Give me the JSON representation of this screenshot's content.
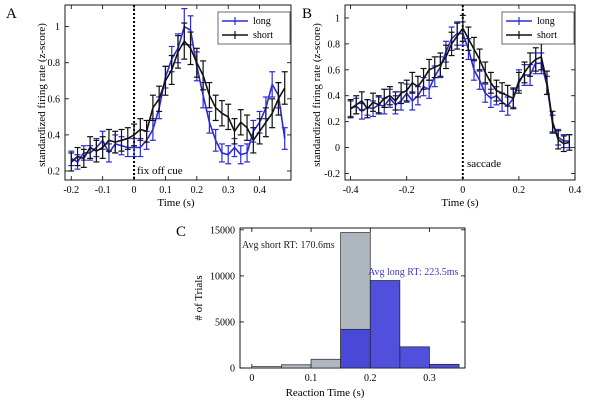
{
  "chart_data": [
    {
      "panel": "A",
      "type": "line",
      "xlabel": "Time (s)",
      "ylabel": "standardized firing rate (z-score)",
      "xlim": [
        -0.22,
        0.5
      ],
      "ylim": [
        0.15,
        1.12
      ],
      "x_ticks": [
        -0.2,
        -0.1,
        0,
        0.1,
        0.2,
        0.3,
        0.4
      ],
      "x_tick_labels": [
        "-0.2",
        "-0.1",
        "0",
        "0.1",
        "0.2",
        "0.3",
        "0.4"
      ],
      "y_ticks": [
        0.2,
        0.4,
        0.6,
        0.8,
        1.0
      ],
      "y_tick_labels": [
        "0.2",
        "0.4",
        "0.6",
        "0.8",
        "1"
      ],
      "vline": {
        "x": 0,
        "label": "fix off cue"
      },
      "legend": [
        "long",
        "short"
      ],
      "series": [
        {
          "name": "long",
          "color": "#2c2cd6",
          "x": [
            -0.2,
            -0.18,
            -0.16,
            -0.14,
            -0.12,
            -0.1,
            -0.08,
            -0.06,
            -0.04,
            -0.02,
            0,
            0.02,
            0.04,
            0.06,
            0.08,
            0.1,
            0.12,
            0.14,
            0.16,
            0.18,
            0.2,
            0.22,
            0.24,
            0.26,
            0.28,
            0.3,
            0.32,
            0.34,
            0.36,
            0.38,
            0.4,
            0.42,
            0.44,
            0.46,
            0.48
          ],
          "y": [
            0.27,
            0.25,
            0.3,
            0.3,
            0.33,
            0.37,
            0.3,
            0.35,
            0.34,
            0.33,
            0.33,
            0.33,
            0.37,
            0.43,
            0.55,
            0.72,
            0.82,
            0.88,
            1.0,
            0.98,
            0.78,
            0.62,
            0.47,
            0.37,
            0.3,
            0.29,
            0.33,
            0.29,
            0.3,
            0.42,
            0.47,
            0.55,
            0.68,
            0.62,
            0.38
          ],
          "err": [
            0.04,
            0.04,
            0.04,
            0.04,
            0.05,
            0.05,
            0.05,
            0.05,
            0.05,
            0.05,
            0.05,
            0.05,
            0.05,
            0.06,
            0.06,
            0.06,
            0.07,
            0.08,
            0.1,
            0.08,
            0.08,
            0.07,
            0.06,
            0.06,
            0.05,
            0.05,
            0.05,
            0.05,
            0.05,
            0.06,
            0.06,
            0.06,
            0.07,
            0.07,
            0.06
          ]
        },
        {
          "name": "short",
          "color": "#111111",
          "x": [
            -0.2,
            -0.18,
            -0.16,
            -0.14,
            -0.12,
            -0.1,
            -0.08,
            -0.06,
            -0.04,
            -0.02,
            0,
            0.02,
            0.04,
            0.06,
            0.08,
            0.1,
            0.12,
            0.14,
            0.16,
            0.18,
            0.2,
            0.22,
            0.24,
            0.26,
            0.28,
            0.3,
            0.32,
            0.34,
            0.36,
            0.38,
            0.4,
            0.42,
            0.44,
            0.46,
            0.48
          ],
          "y": [
            0.25,
            0.28,
            0.27,
            0.33,
            0.31,
            0.33,
            0.37,
            0.36,
            0.37,
            0.38,
            0.4,
            0.43,
            0.42,
            0.55,
            0.6,
            0.7,
            0.76,
            0.86,
            0.92,
            0.88,
            0.8,
            0.73,
            0.62,
            0.55,
            0.52,
            0.5,
            0.42,
            0.47,
            0.44,
            0.37,
            0.42,
            0.47,
            0.52,
            0.6,
            0.66
          ],
          "err": [
            0.05,
            0.05,
            0.05,
            0.06,
            0.06,
            0.06,
            0.06,
            0.06,
            0.06,
            0.06,
            0.06,
            0.06,
            0.06,
            0.07,
            0.07,
            0.08,
            0.08,
            0.09,
            0.1,
            0.09,
            0.08,
            0.08,
            0.07,
            0.07,
            0.07,
            0.07,
            0.07,
            0.07,
            0.07,
            0.07,
            0.07,
            0.08,
            0.08,
            0.09,
            0.09
          ]
        }
      ]
    },
    {
      "panel": "B",
      "type": "line",
      "xlabel": "Time (s)",
      "ylabel": "standardized firing rate (z-score)",
      "xlim": [
        -0.42,
        0.4
      ],
      "ylim": [
        -0.25,
        1.1
      ],
      "x_ticks": [
        -0.4,
        -0.2,
        0,
        0.2,
        0.4
      ],
      "x_tick_labels": [
        "-0.4",
        "-0.2",
        "0",
        "0.2",
        "0.4"
      ],
      "y_ticks": [
        -0.2,
        0,
        0.2,
        0.4,
        0.6,
        0.8,
        1.0
      ],
      "y_tick_labels": [
        "-0.2",
        "0",
        "0.2",
        "0.4",
        "0.6",
        "0.8",
        "1"
      ],
      "vline": {
        "x": 0,
        "label": "saccade"
      },
      "legend": [
        "long",
        "short"
      ],
      "series": [
        {
          "name": "long",
          "color": "#2c2cd6",
          "x": [
            -0.4,
            -0.38,
            -0.36,
            -0.34,
            -0.32,
            -0.3,
            -0.28,
            -0.26,
            -0.24,
            -0.22,
            -0.2,
            -0.18,
            -0.16,
            -0.14,
            -0.12,
            -0.1,
            -0.08,
            -0.06,
            -0.04,
            -0.02,
            0,
            0.02,
            0.04,
            0.06,
            0.08,
            0.1,
            0.12,
            0.14,
            0.16,
            0.18,
            0.2,
            0.22,
            0.24,
            0.26,
            0.28,
            0.3,
            0.32,
            0.34,
            0.36,
            0.38
          ],
          "y": [
            0.3,
            0.32,
            0.28,
            0.31,
            0.3,
            0.33,
            0.32,
            0.38,
            0.33,
            0.36,
            0.42,
            0.36,
            0.4,
            0.47,
            0.45,
            0.55,
            0.62,
            0.74,
            0.84,
            0.88,
            0.88,
            0.76,
            0.6,
            0.52,
            0.42,
            0.38,
            0.4,
            0.35,
            0.32,
            0.38,
            0.52,
            0.56,
            0.56,
            0.65,
            0.65,
            0.48,
            0.18,
            0.08,
            0.05,
            0.05
          ],
          "err": [
            0.06,
            0.06,
            0.06,
            0.06,
            0.06,
            0.06,
            0.06,
            0.07,
            0.07,
            0.07,
            0.07,
            0.07,
            0.07,
            0.07,
            0.07,
            0.08,
            0.08,
            0.08,
            0.09,
            0.09,
            0.09,
            0.08,
            0.08,
            0.07,
            0.07,
            0.07,
            0.07,
            0.07,
            0.07,
            0.07,
            0.08,
            0.08,
            0.08,
            0.08,
            0.08,
            0.07,
            0.07,
            0.06,
            0.05,
            0.05
          ]
        },
        {
          "name": "short",
          "color": "#111111",
          "x": [
            -0.4,
            -0.38,
            -0.36,
            -0.34,
            -0.32,
            -0.3,
            -0.28,
            -0.26,
            -0.24,
            -0.22,
            -0.2,
            -0.18,
            -0.16,
            -0.14,
            -0.12,
            -0.1,
            -0.08,
            -0.06,
            -0.04,
            -0.02,
            0,
            0.02,
            0.04,
            0.06,
            0.08,
            0.1,
            0.12,
            0.14,
            0.16,
            0.18,
            0.2,
            0.22,
            0.24,
            0.26,
            0.28,
            0.3,
            0.32,
            0.34,
            0.36,
            0.38
          ],
          "y": [
            0.3,
            0.33,
            0.36,
            0.3,
            0.35,
            0.33,
            0.38,
            0.4,
            0.36,
            0.42,
            0.44,
            0.5,
            0.47,
            0.53,
            0.6,
            0.62,
            0.64,
            0.7,
            0.8,
            0.86,
            0.92,
            0.84,
            0.76,
            0.68,
            0.58,
            0.5,
            0.44,
            0.42,
            0.4,
            0.38,
            0.5,
            0.58,
            0.64,
            0.68,
            0.7,
            0.5,
            0.2,
            0.06,
            0.03,
            0.04
          ],
          "err": [
            0.07,
            0.07,
            0.07,
            0.07,
            0.07,
            0.07,
            0.07,
            0.07,
            0.07,
            0.08,
            0.08,
            0.08,
            0.08,
            0.08,
            0.08,
            0.08,
            0.09,
            0.09,
            0.09,
            0.1,
            0.1,
            0.09,
            0.09,
            0.08,
            0.08,
            0.08,
            0.08,
            0.08,
            0.08,
            0.08,
            0.08,
            0.08,
            0.09,
            0.09,
            0.1,
            0.09,
            0.08,
            0.07,
            0.06,
            0.06
          ]
        }
      ]
    },
    {
      "panel": "C",
      "type": "bar",
      "xlabel": "Reaction Time (s)",
      "ylabel": "# of Trials",
      "xlim": [
        -0.02,
        0.36
      ],
      "ylim": [
        0,
        15200
      ],
      "x_ticks": [
        0,
        0.1,
        0.2,
        0.3
      ],
      "x_tick_labels": [
        "0",
        "0.1",
        "0.2",
        "0.3"
      ],
      "y_ticks": [
        0,
        5000,
        10000,
        15000
      ],
      "y_tick_labels": [
        "0",
        "5000",
        "10000",
        "15000"
      ],
      "bin_edges": [
        0,
        0.05,
        0.1,
        0.15,
        0.2,
        0.25,
        0.3,
        0.35
      ],
      "series": [
        {
          "name": "short",
          "color": "#aeb6bf",
          "values": [
            150,
            350,
            950,
            14700,
            0,
            0,
            0
          ]
        },
        {
          "name": "long",
          "color": "#3d3dd8",
          "values": [
            0,
            0,
            0,
            4200,
            9500,
            2300,
            400
          ]
        }
      ],
      "annotations": [
        {
          "text": "Avg short RT: 170.6ms",
          "color": "#222222"
        },
        {
          "text": "Avg long RT: 223.5ms",
          "color": "#3b3bc8"
        }
      ]
    }
  ]
}
